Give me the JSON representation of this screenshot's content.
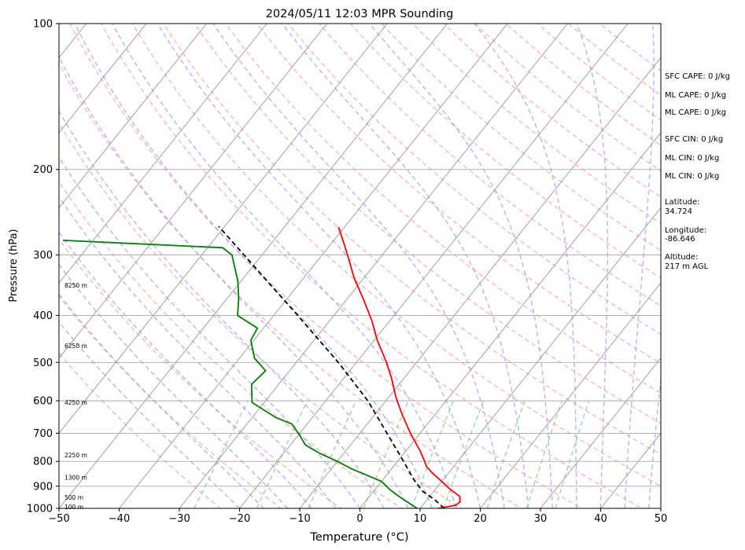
{
  "chart_data": {
    "type": "line",
    "title": "2024/05/11 12:03 MPR Sounding",
    "xlabel": "Temperature (°C)",
    "ylabel": "Pressure (hPa)",
    "xlim": [
      -50,
      50
    ],
    "ylim": [
      1000,
      100
    ],
    "y_scale": "log",
    "skew": "temperature isotherms skewed to the right",
    "grid": true,
    "x_ticks": [
      "−50",
      "−40",
      "−30",
      "−20",
      "−10",
      "0",
      "10",
      "20",
      "30",
      "40",
      "50"
    ],
    "y_ticks": [
      "1000",
      "900",
      "800",
      "700",
      "600",
      "500",
      "400",
      "300",
      "200",
      "100"
    ],
    "height_labels": [
      {
        "text": "100 m",
        "pressure": 995
      },
      {
        "text": "500 m",
        "pressure": 950
      },
      {
        "text": "1300 m",
        "pressure": 865
      },
      {
        "text": "2250 m",
        "pressure": 778
      },
      {
        "text": "4250 m",
        "pressure": 605
      },
      {
        "text": "6250 m",
        "pressure": 463
      },
      {
        "text": "8250 m",
        "pressure": 347
      }
    ],
    "series": [
      {
        "type": "temperature",
        "color": "#ff0000",
        "points": [
          {
            "p": 1000,
            "t": 13
          },
          {
            "p": 985,
            "t": 15.5
          },
          {
            "p": 970,
            "t": 15.8
          },
          {
            "p": 945,
            "t": 15
          },
          {
            "p": 910,
            "t": 12.2
          },
          {
            "p": 880,
            "t": 10
          },
          {
            "p": 845,
            "t": 7.3
          },
          {
            "p": 820,
            "t": 5.5
          },
          {
            "p": 800,
            "t": 4.5
          },
          {
            "p": 760,
            "t": 2.3
          },
          {
            "p": 700,
            "t": -1.6
          },
          {
            "p": 640,
            "t": -5.5
          },
          {
            "p": 590,
            "t": -8.8
          },
          {
            "p": 540,
            "t": -12
          },
          {
            "p": 500,
            "t": -15
          },
          {
            "p": 450,
            "t": -19.5
          },
          {
            "p": 410,
            "t": -23
          },
          {
            "p": 370,
            "t": -27.3
          },
          {
            "p": 335,
            "t": -31.6
          },
          {
            "p": 300,
            "t": -35.8
          },
          {
            "p": 280,
            "t": -38.5
          },
          {
            "p": 263,
            "t": -41
          }
        ]
      },
      {
        "type": "dewpoint",
        "color": "#008000",
        "points": [
          {
            "p": 1000,
            "t": 9.5
          },
          {
            "p": 970,
            "t": 7
          },
          {
            "p": 940,
            "t": 4.5
          },
          {
            "p": 915,
            "t": 2.5
          },
          {
            "p": 880,
            "t": 0
          },
          {
            "p": 830,
            "t": -6.5
          },
          {
            "p": 800,
            "t": -10
          },
          {
            "p": 770,
            "t": -14
          },
          {
            "p": 740,
            "t": -17.5
          },
          {
            "p": 710,
            "t": -19.5
          },
          {
            "p": 670,
            "t": -22.5
          },
          {
            "p": 650,
            "t": -26
          },
          {
            "p": 605,
            "t": -32
          },
          {
            "p": 555,
            "t": -34.5
          },
          {
            "p": 520,
            "t": -34
          },
          {
            "p": 490,
            "t": -37.5
          },
          {
            "p": 450,
            "t": -40.5
          },
          {
            "p": 425,
            "t": -41
          },
          {
            "p": 400,
            "t": -46
          },
          {
            "p": 370,
            "t": -48
          },
          {
            "p": 340,
            "t": -50.5
          },
          {
            "p": 300,
            "t": -55
          },
          {
            "p": 290,
            "t": -57.5
          },
          {
            "p": 280,
            "t": -85
          }
        ]
      },
      {
        "type": "parcel_path",
        "color": "#000000",
        "points": [
          {
            "p": 1000,
            "t": 14
          },
          {
            "p": 960,
            "t": 11.3
          },
          {
            "p": 920,
            "t": 8
          },
          {
            "p": 870,
            "t": 5
          },
          {
            "p": 800,
            "t": 1
          },
          {
            "p": 700,
            "t": -5.5
          },
          {
            "p": 600,
            "t": -13
          },
          {
            "p": 500,
            "t": -23
          },
          {
            "p": 400,
            "t": -36
          },
          {
            "p": 300,
            "t": -53
          },
          {
            "p": 262,
            "t": -61
          }
        ]
      }
    ],
    "background_lines": {
      "isotherms_color": "#999999",
      "dry_adiabats_color": "#ff9999",
      "moist_adiabats_color": "#9999ff",
      "mixing_ratio_color": "#88cc88",
      "isobars_color": "#aaaaaa"
    }
  },
  "stats": {
    "sfc_cape": "SFC CAPE: 0 J/kg",
    "ml_cape_1": "ML CAPE: 0 J/kg",
    "ml_cape_2": "ML CAPE: 0 J/kg",
    "sfc_cin": "SFC CIN: 0 J/kg",
    "ml_cin_1": "ML CIN: 0 J/kg",
    "ml_cin_2": "ML CIN: 0 J/kg",
    "latitude_label": "Latitude:",
    "latitude_value": "34.724",
    "longitude_label": "Longitude:",
    "longitude_value": "-86.646",
    "altitude_label": "Altitude:",
    "altitude_value": "217 m AGL"
  }
}
